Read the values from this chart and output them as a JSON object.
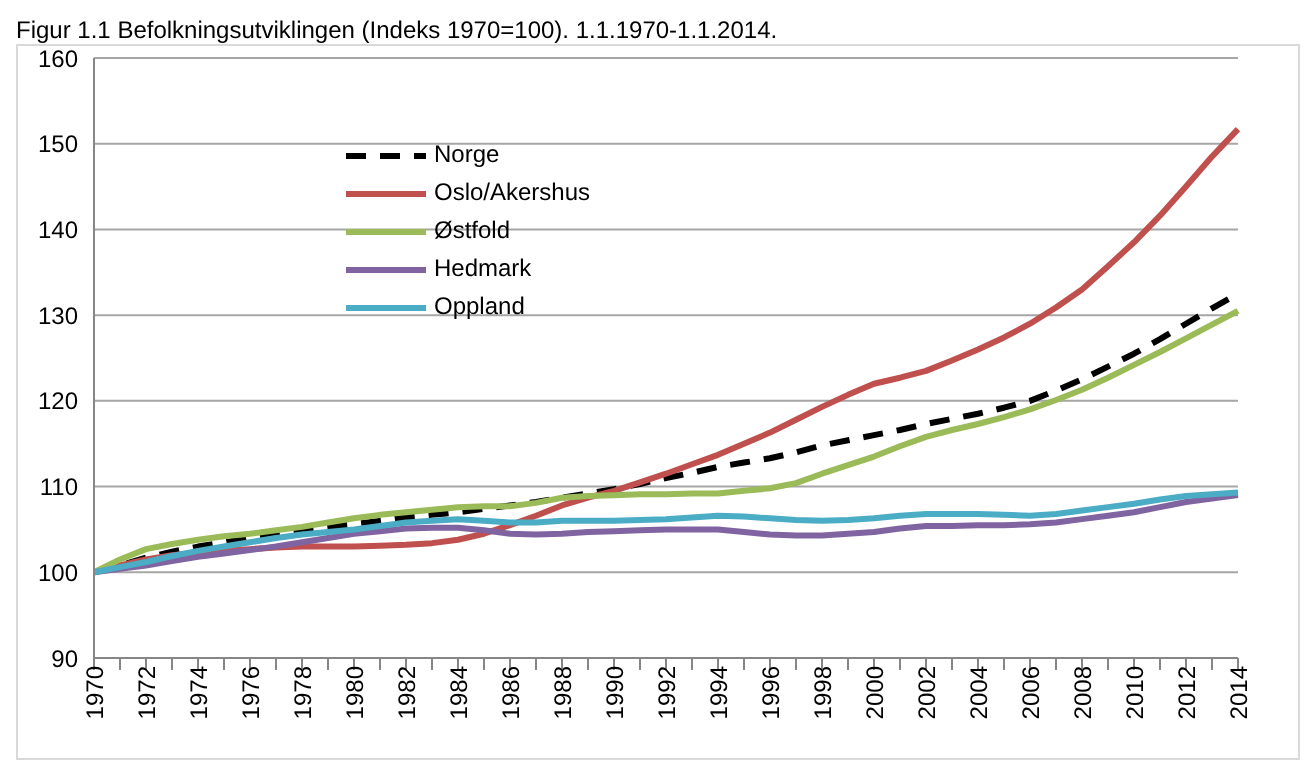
{
  "chart_data": {
    "type": "line",
    "title": "Figur 1.1 Befolkningsutviklingen (Indeks 1970=100). 1.1.1970-1.1.2014.",
    "categories": [
      "1970",
      null,
      "1972",
      null,
      "1974",
      null,
      "1976",
      null,
      "1978",
      null,
      "1980",
      null,
      "1982",
      null,
      "1984",
      null,
      "1986",
      null,
      "1988",
      null,
      "1990",
      null,
      "1992",
      null,
      "1994",
      null,
      "1996",
      null,
      "1998",
      null,
      "2000",
      null,
      "2002",
      null,
      "2004",
      null,
      "2006",
      null,
      "2008",
      null,
      "2010",
      null,
      "2012",
      null,
      "2014"
    ],
    "series": [
      {
        "name": "Norge",
        "color": "#000000",
        "line_style": "dashed",
        "values": [
          100,
          100.8,
          101.7,
          102.4,
          103,
          103.5,
          104,
          104.4,
          104.9,
          105.3,
          105.6,
          106,
          106.4,
          106.7,
          107,
          107.4,
          107.8,
          108.2,
          108.7,
          109.2,
          109.7,
          110.3,
          111,
          111.6,
          112.3,
          112.8,
          113.3,
          114,
          114.8,
          115.4,
          116,
          116.6,
          117.3,
          117.9,
          118.5,
          119.2,
          120,
          121.2,
          122.5,
          124,
          125.5,
          127.2,
          129,
          130.8,
          132.5
        ]
      },
      {
        "name": "Oslo/Akershus",
        "color": "#c0504d",
        "values": [
          100,
          100.8,
          101.5,
          102,
          102.3,
          102.5,
          102.7,
          102.9,
          103,
          103,
          103,
          103.1,
          103.2,
          103.4,
          103.8,
          104.5,
          105.5,
          106.6,
          107.8,
          108.7,
          109.5,
          110.5,
          111.5,
          112.6,
          113.7,
          115,
          116.3,
          117.8,
          119.3,
          120.7,
          122,
          122.7,
          123.5,
          124.7,
          126,
          127.4,
          129,
          130.9,
          133,
          135.7,
          138.5,
          141.6,
          145,
          148.5,
          151.7
        ]
      },
      {
        "name": "Østfold",
        "color": "#9bbb59",
        "values": [
          100,
          101.5,
          102.7,
          103.3,
          103.8,
          104.2,
          104.5,
          104.9,
          105.3,
          105.8,
          106.3,
          106.7,
          107,
          107.3,
          107.6,
          107.7,
          107.7,
          108.1,
          108.7,
          108.9,
          109,
          109.1,
          109.1,
          109.2,
          109.2,
          109.5,
          109.8,
          110.4,
          111.5,
          112.5,
          113.5,
          114.7,
          115.8,
          116.6,
          117.3,
          118.1,
          119,
          120.1,
          121.3,
          122.7,
          124.2,
          125.7,
          127.3,
          128.9,
          130.5
        ]
      },
      {
        "name": "Hedmark",
        "color": "#8064a2",
        "values": [
          100,
          100.4,
          100.8,
          101.3,
          101.8,
          102.2,
          102.6,
          103,
          103.5,
          104,
          104.5,
          104.8,
          105.1,
          105.2,
          105.2,
          104.9,
          104.5,
          104.4,
          104.5,
          104.7,
          104.8,
          104.9,
          105,
          105,
          105,
          104.7,
          104.4,
          104.3,
          104.3,
          104.5,
          104.7,
          105.1,
          105.4,
          105.4,
          105.5,
          105.5,
          105.6,
          105.8,
          106.2,
          106.6,
          107,
          107.6,
          108.2,
          108.6,
          109
        ]
      },
      {
        "name": "Oppland",
        "color": "#4bacc6",
        "values": [
          100,
          100.6,
          101.2,
          101.9,
          102.5,
          103,
          103.5,
          104,
          104.4,
          104.7,
          105,
          105.4,
          105.8,
          106,
          106.2,
          106,
          105.8,
          105.8,
          106,
          106,
          106,
          106.1,
          106.2,
          106.4,
          106.6,
          106.5,
          106.3,
          106.1,
          106,
          106.1,
          106.3,
          106.6,
          106.8,
          106.8,
          106.8,
          106.7,
          106.6,
          106.8,
          107.2,
          107.6,
          108,
          108.5,
          108.9,
          109.1,
          109.3
        ]
      }
    ],
    "ylim": [
      90,
      160
    ],
    "yticks": [
      90,
      100,
      110,
      120,
      130,
      140,
      150,
      160
    ],
    "grid": "y",
    "legend": "top left",
    "marker": "none"
  }
}
